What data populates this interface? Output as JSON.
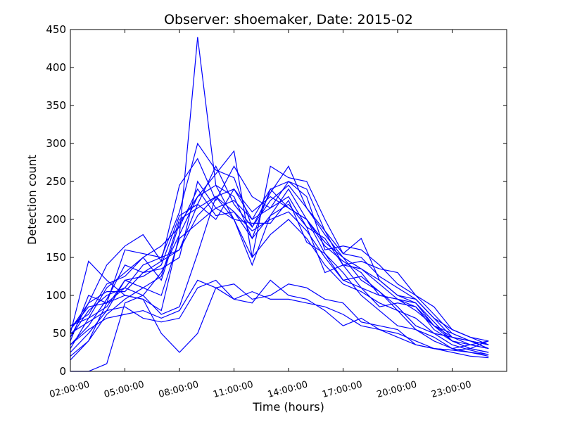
{
  "chart_data": {
    "type": "line",
    "title": "Observer: shoemaker, Date: 2015-02",
    "xlabel": "Time (hours)",
    "ylabel": "Detection count",
    "xlim": [
      2,
      26
    ],
    "ylim": [
      0,
      450
    ],
    "x_tick_labels": [
      "02:00:00",
      "05:00:00",
      "08:00:00",
      "11:00:00",
      "14:00:00",
      "17:00:00",
      "20:00:00",
      "23:00:00"
    ],
    "y_tick_labels": [
      "0",
      "50",
      "100",
      "150",
      "200",
      "250",
      "300",
      "350",
      "400",
      "450"
    ],
    "line_color": "#0000ff",
    "x": [
      2,
      3,
      4,
      5,
      6,
      7,
      8,
      9,
      10,
      11,
      12,
      13,
      14,
      15,
      16,
      17,
      18,
      19,
      20,
      21,
      22,
      23,
      24,
      25
    ],
    "series": [
      {
        "values": [
          50,
          145,
          120,
          100,
          95,
          80,
          180,
          440,
          245,
          200,
          140,
          205,
          240,
          200,
          170,
          150,
          120,
          105,
          80,
          55,
          45,
          30,
          35,
          40
        ]
      },
      {
        "values": [
          40,
          100,
          90,
          160,
          155,
          150,
          210,
          300,
          265,
          255,
          190,
          235,
          270,
          215,
          185,
          155,
          175,
          120,
          100,
          90,
          60,
          50,
          40,
          30
        ]
      },
      {
        "values": [
          55,
          90,
          140,
          165,
          180,
          145,
          245,
          280,
          225,
          270,
          230,
          215,
          250,
          230,
          160,
          165,
          160,
          140,
          115,
          100,
          85,
          55,
          45,
          35
        ]
      },
      {
        "values": [
          30,
          70,
          110,
          130,
          150,
          120,
          195,
          230,
          260,
          290,
          150,
          270,
          255,
          250,
          200,
          155,
          150,
          125,
          110,
          95,
          70,
          55,
          45,
          40
        ]
      },
      {
        "values": [
          20,
          40,
          90,
          110,
          100,
          130,
          180,
          230,
          245,
          230,
          175,
          240,
          250,
          240,
          185,
          140,
          145,
          135,
          130,
          100,
          75,
          50,
          40,
          35
        ]
      },
      {
        "values": [
          60,
          70,
          85,
          120,
          125,
          140,
          205,
          220,
          270,
          220,
          190,
          225,
          245,
          215,
          180,
          150,
          135,
          120,
          100,
          95,
          70,
          45,
          40,
          30
        ]
      },
      {
        "values": [
          45,
          80,
          100,
          110,
          140,
          150,
          160,
          220,
          200,
          240,
          210,
          230,
          215,
          200,
          165,
          145,
          130,
          100,
          95,
          90,
          65,
          40,
          35,
          30
        ]
      },
      {
        "values": [
          35,
          60,
          95,
          140,
          130,
          135,
          150,
          250,
          215,
          225,
          200,
          215,
          230,
          190,
          175,
          140,
          110,
          85,
          90,
          85,
          60,
          40,
          30,
          25
        ]
      },
      {
        "values": [
          25,
          50,
          80,
          120,
          110,
          125,
          200,
          215,
          230,
          210,
          185,
          200,
          210,
          185,
          150,
          120,
          110,
          100,
          95,
          85,
          55,
          40,
          30,
          25
        ]
      },
      {
        "values": [
          15,
          40,
          75,
          95,
          110,
          100,
          175,
          195,
          215,
          200,
          150,
          180,
          200,
          175,
          140,
          115,
          105,
          90,
          80,
          70,
          50,
          35,
          28,
          22
        ]
      },
      {
        "values": [
          0,
          0,
          10,
          90,
          100,
          75,
          85,
          155,
          230,
          200,
          195,
          195,
          225,
          170,
          155,
          130,
          100,
          80,
          60,
          55,
          40,
          30,
          25,
          20
        ]
      },
      {
        "values": [
          35,
          55,
          70,
          75,
          80,
          70,
          80,
          120,
          110,
          95,
          90,
          120,
          100,
          95,
          80,
          60,
          70,
          55,
          50,
          40,
          30,
          25,
          20,
          18
        ]
      },
      {
        "values": [
          50,
          65,
          80,
          85,
          70,
          65,
          70,
          110,
          120,
          95,
          105,
          95,
          95,
          90,
          85,
          75,
          60,
          55,
          45,
          35,
          30,
          28,
          25,
          22
        ]
      },
      {
        "values": [
          55,
          85,
          90,
          100,
          95,
          50,
          25,
          50,
          110,
          115,
          95,
          100,
          115,
          110,
          95,
          90,
          65,
          60,
          55,
          35,
          30,
          28,
          30,
          40
        ]
      },
      {
        "values": [
          45,
          90,
          105,
          105,
          130,
          145,
          160,
          205,
          230,
          240,
          200,
          240,
          215,
          200,
          155,
          120,
          125,
          105,
          85,
          60,
          50,
          45,
          40,
          35
        ]
      },
      {
        "values": [
          60,
          75,
          115,
          125,
          150,
          165,
          190,
          240,
          205,
          210,
          175,
          205,
          220,
          190,
          130,
          140,
          135,
          115,
          95,
          80,
          60,
          45,
          35,
          30
        ]
      }
    ]
  }
}
